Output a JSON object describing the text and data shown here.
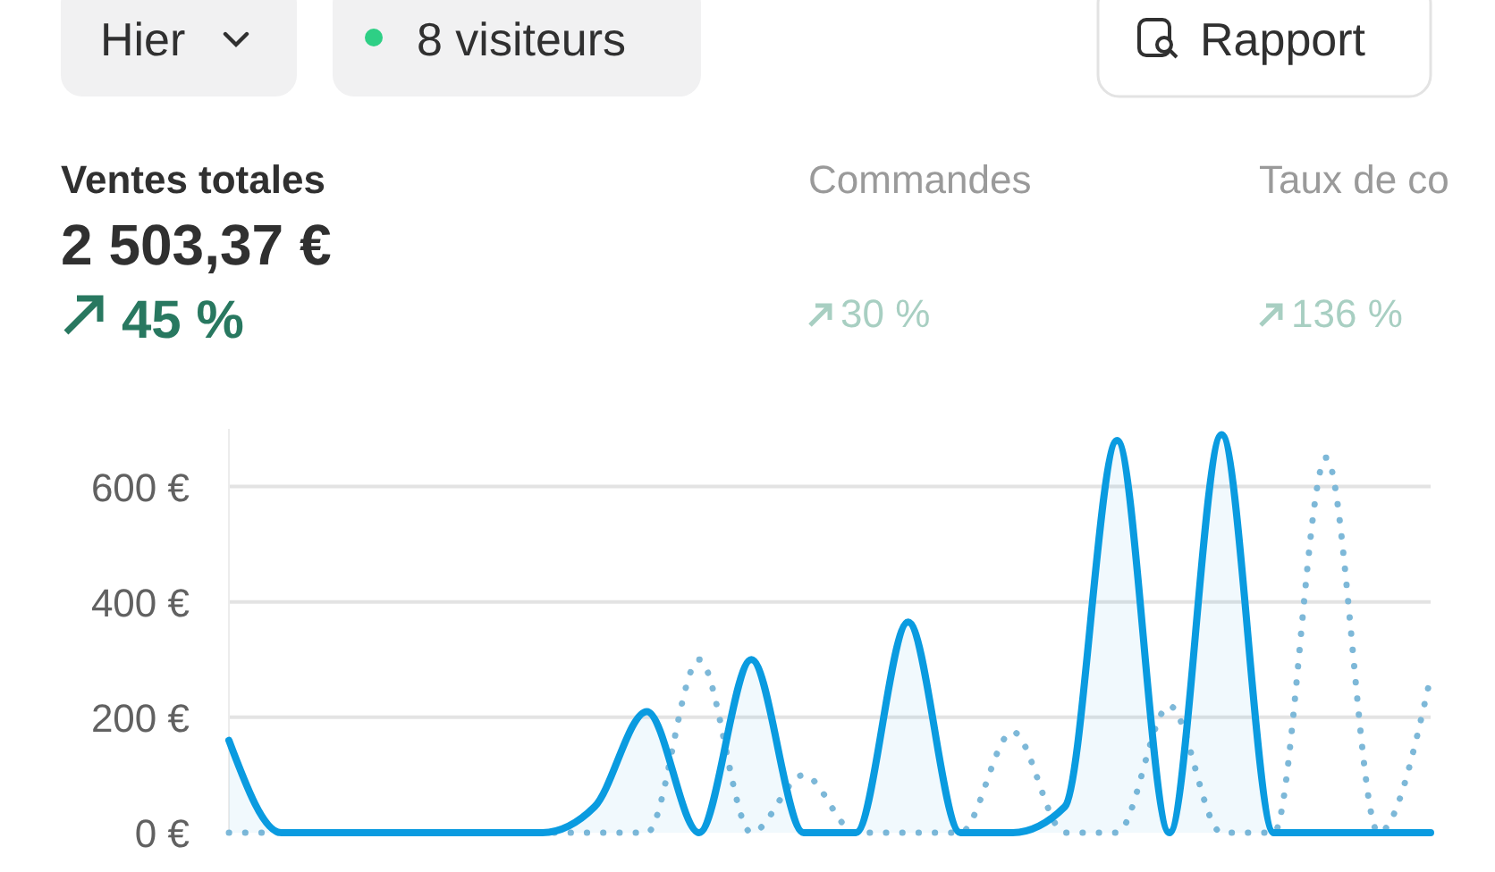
{
  "chart_data": {
    "type": "line",
    "title": "Ventes totales",
    "subtitle": "2 503,37 €",
    "annotations": [
      "Hier",
      "8 visiteurs",
      "Rapport",
      "45 %",
      "Commandes",
      "30 %",
      "Taux de co",
      "136 %"
    ],
    "categories": [
      null,
      null,
      null,
      null,
      null,
      null,
      null,
      null,
      null,
      null,
      null,
      null,
      null,
      null,
      null,
      null,
      null,
      null,
      null,
      null,
      null,
      null,
      null,
      null
    ],
    "series": [
      {
        "color": "#7db8d8",
        "line_style": "dotted",
        "values": [
          0,
          0,
          0,
          0,
          0,
          0,
          0,
          0,
          0,
          300,
          0,
          100,
          0,
          0,
          0,
          175,
          0,
          0,
          220,
          0,
          0,
          650,
          0,
          270
        ]
      },
      {
        "type": "area",
        "color": "#0a9be0",
        "line_style": "solid",
        "values": [
          160,
          0,
          0,
          0,
          0,
          0,
          0,
          45,
          210,
          0,
          300,
          0,
          0,
          365,
          0,
          0,
          45,
          680,
          0,
          690,
          0,
          0,
          0,
          0
        ]
      }
    ],
    "ylim": [
      0,
      700
    ],
    "yticks": [
      {
        "value": 0,
        "label": "0 €"
      },
      {
        "value": 200,
        "label": "200 €"
      },
      {
        "value": 400,
        "label": "400 €"
      },
      {
        "value": 600,
        "label": "600 €"
      }
    ],
    "grid": "y"
  }
}
